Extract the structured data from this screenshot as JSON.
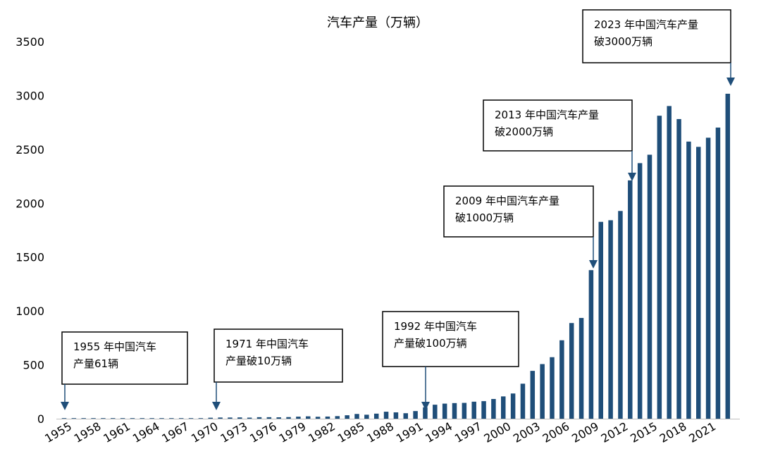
{
  "chart_data": {
    "type": "bar",
    "title": "汽车产量（万辆）",
    "xlabel": "",
    "ylabel": "",
    "ylim": [
      0,
      3500
    ],
    "yticks": [
      0,
      500,
      1000,
      1500,
      2000,
      2500,
      3000,
      3500
    ],
    "grid": false,
    "bar_color": "#1f4e79",
    "arrow_color": "#1f4e79",
    "x_tick_labels": [
      "1955",
      "1958",
      "1961",
      "1964",
      "1967",
      "1970",
      "1973",
      "1976",
      "1979",
      "1982",
      "1985",
      "1988",
      "1991",
      "1994",
      "1997",
      "2000",
      "2003",
      "2006",
      "2009",
      "2012",
      "2015",
      "2018",
      "2021"
    ],
    "categories": [
      "1955",
      "1956",
      "1957",
      "1958",
      "1959",
      "1960",
      "1961",
      "1962",
      "1963",
      "1964",
      "1965",
      "1966",
      "1967",
      "1968",
      "1969",
      "1970",
      "1971",
      "1972",
      "1973",
      "1974",
      "1975",
      "1976",
      "1977",
      "1978",
      "1979",
      "1980",
      "1981",
      "1982",
      "1983",
      "1984",
      "1985",
      "1986",
      "1987",
      "1988",
      "1989",
      "1990",
      "1991",
      "1992",
      "1993",
      "1994",
      "1995",
      "1996",
      "1997",
      "1998",
      "1999",
      "2000",
      "2001",
      "2002",
      "2003",
      "2004",
      "2005",
      "2006",
      "2007",
      "2008",
      "2009",
      "2010",
      "2011",
      "2012",
      "2013",
      "2014",
      "2015",
      "2016",
      "2017",
      "2018",
      "2019",
      "2020",
      "2021",
      "2022",
      "2023"
    ],
    "values": [
      0.0061,
      0.02,
      0.8,
      1.6,
      2,
      2,
      1,
      1,
      2,
      3,
      4,
      5,
      2,
      3,
      5,
      9,
      11,
      11,
      12,
      10,
      14,
      14,
      13,
      15,
      19,
      22,
      18,
      20,
      24,
      32,
      44,
      37,
      47,
      65,
      59,
      51,
      71,
      106,
      130,
      140,
      145,
      147,
      158,
      163,
      183,
      207,
      234,
      325,
      444,
      507,
      571,
      728,
      888,
      935,
      1379,
      1827,
      1842,
      1928,
      2212,
      2372,
      2450,
      2812,
      2902,
      2781,
      2572,
      2523,
      2608,
      2702,
      3016
    ],
    "annotations": [
      {
        "line1": "1955 年中国汽车",
        "line2": "产量61辆",
        "year": "1955"
      },
      {
        "line1": "1971 年中国汽车",
        "line2": "产量破10万辆",
        "year": "1971"
      },
      {
        "line1": "1992 年中国汽车",
        "line2": "产量破100万辆",
        "year": "1992"
      },
      {
        "line1": "2009 年中国汽车产量",
        "line2": "破1000万辆",
        "year": "2009"
      },
      {
        "line1": "2013 年中国汽车产量",
        "line2": "破2000万辆",
        "year": "2013"
      },
      {
        "line1": "2023 年中国汽车产量",
        "line2": "破3000万辆",
        "year": "2023"
      }
    ]
  }
}
